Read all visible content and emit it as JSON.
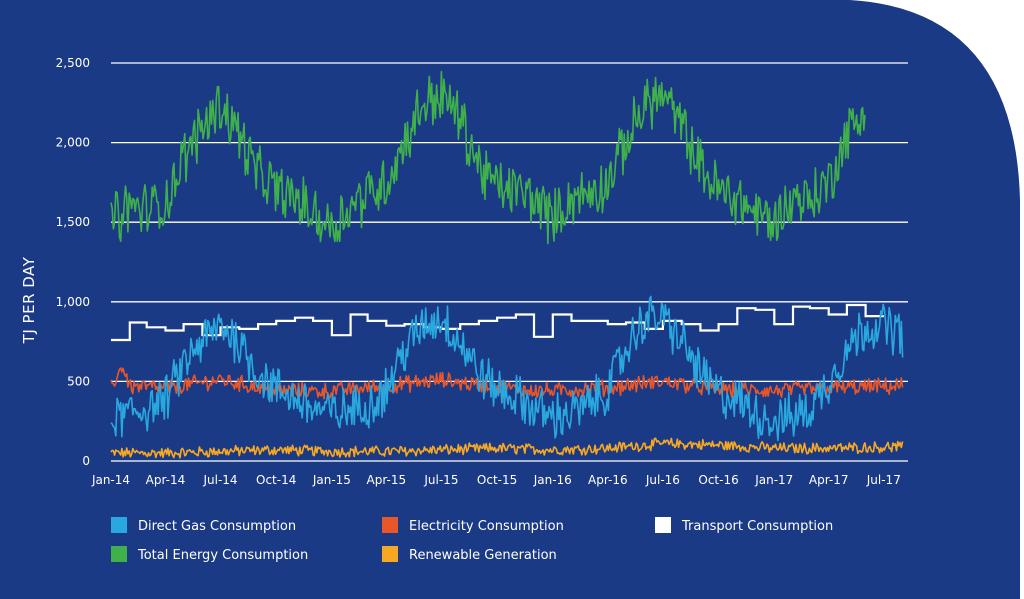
{
  "chart_data": {
    "type": "line",
    "title": "",
    "ylabel": "TJ PER DAY",
    "xlabel": "",
    "ylim": [
      0,
      2500
    ],
    "yticks": [
      0,
      500,
      1000,
      1500,
      2000,
      2500
    ],
    "ytick_labels": [
      "0",
      "500",
      "1,000",
      "1,500",
      "2,000",
      "2,500"
    ],
    "xlim": [
      "2014-01-01",
      "2017-08-10"
    ],
    "xticks": [
      {
        "date": "2014-01-01",
        "label": "Jan-14"
      },
      {
        "date": "2014-04-01",
        "label": "Apr-14"
      },
      {
        "date": "2014-07-01",
        "label": "Jul-14"
      },
      {
        "date": "2014-10-01",
        "label": "Oct-14"
      },
      {
        "date": "2015-01-01",
        "label": "Jan-15"
      },
      {
        "date": "2015-04-01",
        "label": "Apr-15"
      },
      {
        "date": "2015-07-01",
        "label": "Jul-15"
      },
      {
        "date": "2015-10-01",
        "label": "Oct-15"
      },
      {
        "date": "2016-01-01",
        "label": "Jan-16"
      },
      {
        "date": "2016-04-01",
        "label": "Apr-16"
      },
      {
        "date": "2016-07-01",
        "label": "Jul-16"
      },
      {
        "date": "2016-10-01",
        "label": "Oct-16"
      },
      {
        "date": "2017-01-01",
        "label": "Jan-17"
      },
      {
        "date": "2017-04-01",
        "label": "Apr-17"
      },
      {
        "date": "2017-07-01",
        "label": "Jul-17"
      }
    ],
    "grid": true,
    "legend_position": "bottom",
    "background_color": "#1b3a85",
    "series": [
      {
        "name": "Total Energy Consumption",
        "color": "#3fb04a",
        "x": [
          "2014-01-01",
          "2014-02-01",
          "2014-03-01",
          "2014-04-01",
          "2014-05-01",
          "2014-06-01",
          "2014-07-01",
          "2014-08-01",
          "2014-09-01",
          "2014-10-01",
          "2014-11-01",
          "2014-12-01",
          "2015-01-01",
          "2015-02-01",
          "2015-03-01",
          "2015-04-01",
          "2015-05-01",
          "2015-06-01",
          "2015-07-01",
          "2015-08-01",
          "2015-09-01",
          "2015-10-01",
          "2015-11-01",
          "2015-12-01",
          "2016-01-01",
          "2016-02-01",
          "2016-03-01",
          "2016-04-01",
          "2016-05-01",
          "2016-06-01",
          "2016-07-01",
          "2016-08-01",
          "2016-09-01",
          "2016-10-01",
          "2016-11-01",
          "2016-12-01",
          "2017-01-01",
          "2017-02-01",
          "2017-03-01",
          "2017-04-01",
          "2017-05-01",
          "2017-06-01"
        ],
        "values": [
          1500,
          1600,
          1580,
          1620,
          1900,
          2100,
          2250,
          2050,
          1800,
          1700,
          1650,
          1550,
          1480,
          1600,
          1680,
          1750,
          2000,
          2250,
          2300,
          2150,
          1850,
          1720,
          1700,
          1650,
          1520,
          1650,
          1680,
          1750,
          2000,
          2250,
          2300,
          2100,
          1850,
          1700,
          1650,
          1560,
          1500,
          1650,
          1650,
          1750,
          2050,
          2200
        ],
        "noise": 150
      },
      {
        "name": "Direct Gas Consumption",
        "color": "#29a8e0",
        "x": [
          "2014-01-01",
          "2014-02-01",
          "2014-03-01",
          "2014-04-01",
          "2014-05-01",
          "2014-06-01",
          "2014-07-01",
          "2014-08-01",
          "2014-09-01",
          "2014-10-01",
          "2014-11-01",
          "2014-12-01",
          "2015-01-01",
          "2015-02-01",
          "2015-03-01",
          "2015-04-01",
          "2015-05-01",
          "2015-06-01",
          "2015-07-01",
          "2015-08-01",
          "2015-09-01",
          "2015-10-01",
          "2015-11-01",
          "2015-12-01",
          "2016-01-01",
          "2016-02-01",
          "2016-03-01",
          "2016-04-01",
          "2016-05-01",
          "2016-06-01",
          "2016-07-01",
          "2016-08-01",
          "2016-09-01",
          "2016-10-01",
          "2016-11-01",
          "2016-12-01",
          "2017-01-01",
          "2017-02-01",
          "2017-03-01",
          "2017-04-01",
          "2017-05-01",
          "2017-06-01",
          "2017-07-01",
          "2017-08-01"
        ],
        "values": [
          250,
          300,
          330,
          380,
          600,
          750,
          850,
          750,
          550,
          450,
          400,
          330,
          300,
          320,
          350,
          450,
          700,
          850,
          900,
          750,
          550,
          450,
          400,
          330,
          280,
          300,
          350,
          450,
          700,
          900,
          900,
          750,
          550,
          420,
          380,
          300,
          250,
          280,
          320,
          500,
          700,
          850,
          850,
          800
        ],
        "noise": 130
      },
      {
        "name": "Electricity Consumption",
        "color": "#e8562a",
        "x": [
          "2014-01-01",
          "2014-01-20",
          "2014-02-01",
          "2014-04-01",
          "2014-07-01",
          "2014-10-01",
          "2015-01-01",
          "2015-04-01",
          "2015-07-01",
          "2015-10-01",
          "2016-01-01",
          "2016-04-01",
          "2016-07-01",
          "2016-10-01",
          "2017-01-01",
          "2017-04-01",
          "2017-08-01"
        ],
        "values": [
          460,
          600,
          470,
          460,
          510,
          440,
          440,
          470,
          510,
          460,
          440,
          460,
          500,
          450,
          440,
          460,
          470
        ],
        "noise": 45
      },
      {
        "name": "Transport Consumption",
        "color": "#ffffff",
        "step": true,
        "x": [
          "2014-01-01",
          "2014-02-01",
          "2014-03-01",
          "2014-04-01",
          "2014-05-01",
          "2014-06-01",
          "2014-07-01",
          "2014-08-01",
          "2014-09-01",
          "2014-10-01",
          "2014-11-01",
          "2014-12-01",
          "2015-01-01",
          "2015-02-01",
          "2015-03-01",
          "2015-04-01",
          "2015-05-01",
          "2015-06-01",
          "2015-07-01",
          "2015-08-01",
          "2015-09-01",
          "2015-10-01",
          "2015-11-01",
          "2015-12-01",
          "2016-01-01",
          "2016-02-01",
          "2016-03-01",
          "2016-04-01",
          "2016-05-01",
          "2016-06-01",
          "2016-07-01",
          "2016-08-01",
          "2016-09-01",
          "2016-10-01",
          "2016-11-01",
          "2016-12-01",
          "2017-01-01",
          "2017-02-01",
          "2017-03-01",
          "2017-04-01",
          "2017-05-01",
          "2017-06-01"
        ],
        "values": [
          760,
          870,
          840,
          820,
          860,
          790,
          840,
          830,
          860,
          880,
          900,
          880,
          790,
          920,
          880,
          850,
          860,
          840,
          830,
          860,
          880,
          900,
          920,
          780,
          920,
          880,
          880,
          860,
          870,
          830,
          880,
          860,
          820,
          860,
          960,
          950,
          860,
          970,
          960,
          920,
          980,
          910
        ]
      },
      {
        "name": "Renewable Generation",
        "color": "#f7a823",
        "x": [
          "2014-01-01",
          "2014-04-01",
          "2014-07-01",
          "2014-10-01",
          "2015-01-01",
          "2015-04-01",
          "2015-07-01",
          "2015-10-01",
          "2016-01-01",
          "2016-04-01",
          "2016-07-01",
          "2016-10-01",
          "2017-01-01",
          "2017-04-01",
          "2017-08-01"
        ],
        "values": [
          50,
          50,
          60,
          70,
          60,
          60,
          70,
          80,
          70,
          80,
          110,
          100,
          80,
          80,
          90
        ],
        "noise": 30
      }
    ]
  },
  "legend": {
    "items": [
      {
        "label": "Direct Gas Consumption",
        "color": "#29a8e0"
      },
      {
        "label": "Electricity Consumption",
        "color": "#e8562a"
      },
      {
        "label": "Transport Consumption",
        "color": "#ffffff"
      },
      {
        "label": "Total Energy Consumption",
        "color": "#3fb04a"
      },
      {
        "label": "Renewable Generation",
        "color": "#f7a823"
      }
    ]
  }
}
